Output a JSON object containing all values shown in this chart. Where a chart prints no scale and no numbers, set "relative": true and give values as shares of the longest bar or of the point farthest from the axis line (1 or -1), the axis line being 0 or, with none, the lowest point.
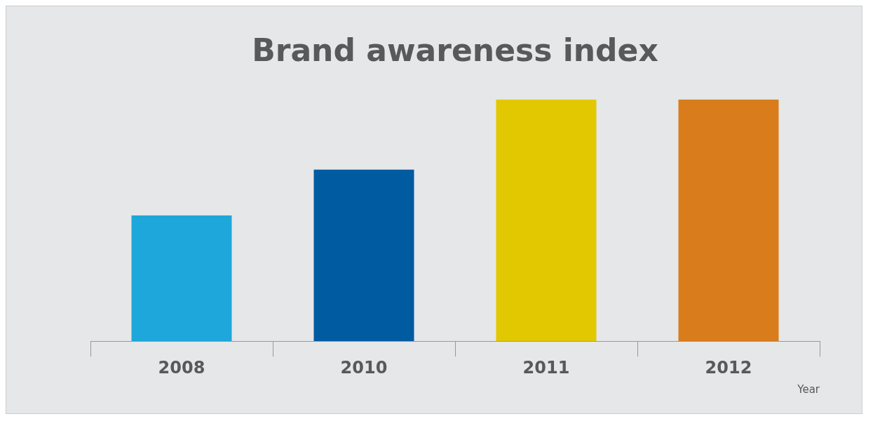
{
  "chart_data": {
    "type": "bar",
    "title": "Brand awareness index",
    "xlabel": "Year",
    "relative": true,
    "categories": [
      "2008",
      "2010",
      "2011",
      "2012"
    ],
    "values": [
      0.52,
      0.71,
      1,
      1
    ],
    "colors": [
      "#1ea7db",
      "#005ba1",
      "#e2c800",
      "#d97d1c"
    ],
    "grid": false,
    "legend": false
  }
}
